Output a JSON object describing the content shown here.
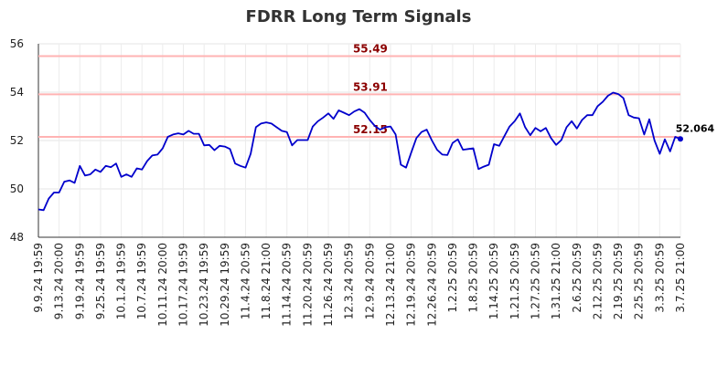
{
  "chart_data": {
    "type": "line",
    "title": "FDRR Long Term Signals",
    "xlabel": "",
    "ylabel": "",
    "ylim": [
      48,
      56
    ],
    "yticks": [
      48,
      50,
      52,
      54,
      56
    ],
    "grid": true,
    "line_color": "#0000cc",
    "reference_color": "#ffb3b3",
    "reference_label_color": "#8b0000",
    "reference_lines": [
      {
        "value": 55.49,
        "label": "55.49"
      },
      {
        "value": 53.91,
        "label": "53.91"
      },
      {
        "value": 52.15,
        "label": "52.15"
      }
    ],
    "last_value_label": "52.064",
    "xtick_labels": [
      "9.9.24 19:59",
      "9.13.24 20:00",
      "9.19.24 19:59",
      "9.25.24 19:59",
      "10.1.24 19:59",
      "10.7.24 19:59",
      "10.11.24 20:00",
      "10.17.24 19:59",
      "10.23.24 19:59",
      "10.29.24 19:59",
      "11.4.24 20:59",
      "11.8.24 21:00",
      "11.14.24 20:59",
      "11.20.24 20:59",
      "11.26.24 20:59",
      "12.3.24 20:59",
      "12.9.24 20:59",
      "12.13.24 21:00",
      "12.19.24 20:59",
      "12.26.24 20:59",
      "1.2.25 20:59",
      "1.8.25 20:59",
      "1.14.25 20:59",
      "1.21.25 20:59",
      "1.27.25 20:59",
      "1.31.25 21:00",
      "2.6.25 20:59",
      "2.12.25 20:59",
      "2.19.25 20:59",
      "2.25.25 20:59",
      "3.3.25 20:59",
      "3.7.25 21:00"
    ],
    "series": [
      {
        "values": [
          49.15,
          49.12,
          49.6,
          49.85,
          49.85,
          50.3,
          50.35,
          50.25,
          50.95,
          50.55,
          50.6,
          50.8,
          50.7,
          50.95,
          50.9,
          51.05,
          50.5,
          50.6,
          50.5,
          50.85,
          50.8,
          51.15,
          51.38,
          51.42,
          51.68,
          52.15,
          52.25,
          52.3,
          52.25,
          52.4,
          52.28,
          52.28,
          51.8,
          51.82,
          51.6,
          51.78,
          51.75,
          51.65,
          51.05,
          50.95,
          50.88,
          51.45,
          52.55,
          52.7,
          52.75,
          52.7,
          52.55,
          52.4,
          52.35,
          51.8,
          52.02,
          52.02,
          52.02,
          52.58,
          52.8,
          52.95,
          53.12,
          52.9,
          53.25,
          53.15,
          53.05,
          53.2,
          53.3,
          53.15,
          52.85,
          52.6,
          52.45,
          52.55,
          52.58,
          52.25,
          51.0,
          50.88,
          51.5,
          52.1,
          52.35,
          52.45,
          52.0,
          51.62,
          51.42,
          51.4,
          51.9,
          52.05,
          51.62,
          51.65,
          51.68,
          50.82,
          50.92,
          51.0,
          51.85,
          51.78,
          52.18,
          52.58,
          52.8,
          53.12,
          52.55,
          52.22,
          52.52,
          52.38,
          52.52,
          52.1,
          51.82,
          52.02,
          52.55,
          52.8,
          52.5,
          52.85,
          53.05,
          53.05,
          53.42,
          53.6,
          53.85,
          53.98,
          53.92,
          53.75,
          53.05,
          52.95,
          52.92,
          52.25,
          52.88,
          52.0,
          51.45,
          52.05,
          51.55,
          52.15,
          52.064
        ]
      }
    ]
  }
}
